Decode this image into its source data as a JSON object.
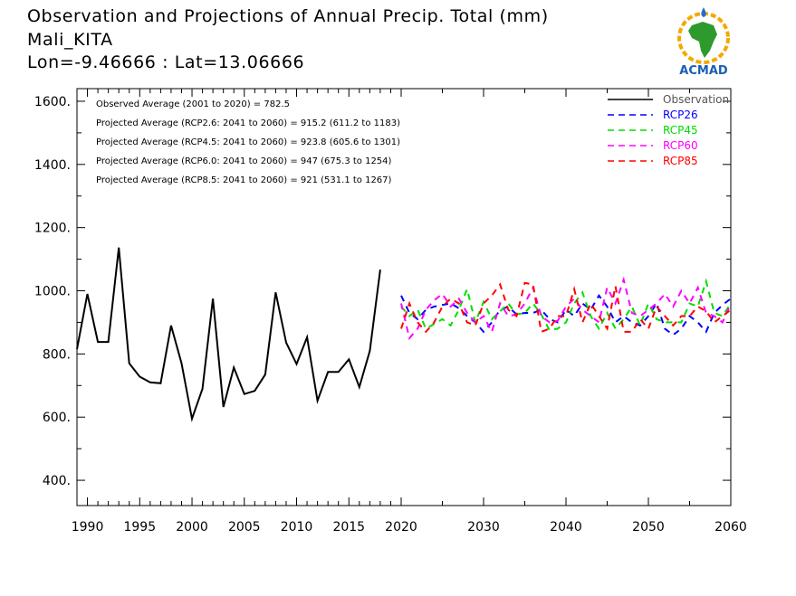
{
  "header": {
    "title": "Observation and Projections of Annual Precip. Total (mm)",
    "location": "Mali_KITA",
    "coords": "Lon=-9.46666 : Lat=13.06666"
  },
  "logo": {
    "text": "ACMAD",
    "icon": "africa-globe-logo"
  },
  "annotations": [
    "Observed Average (2001 to 2020) = 782.5",
    "Projected Average (RCP2.6: 2041 to 2060) = 915.2 (611.2 to 1183)",
    "Projected Average (RCP4.5: 2041 to 2060) = 923.8 (605.6 to 1301)",
    "Projected Average (RCP6.0: 2041 to 2060) = 947 (675.3 to 1254)",
    "Projected Average (RCP8.5: 2041 to 2060) = 921 (531.1 to 1267)"
  ],
  "chart_data": {
    "type": "line",
    "xlim": [
      1989,
      2060
    ],
    "ylim": [
      320,
      1640
    ],
    "x_ticks": [
      1990,
      1995,
      2000,
      2005,
      2010,
      2015,
      2020,
      2030,
      2040,
      2050,
      2060
    ],
    "x_tick_labels": [
      "1990",
      "1995",
      "2000",
      "2005",
      "2010",
      "2015",
      "2020",
      "2030",
      "2040",
      "2050",
      "2060"
    ],
    "y_ticks": [
      400,
      600,
      800,
      1000,
      1200,
      1400,
      1600
    ],
    "y_tick_labels": [
      "400.",
      "600.",
      "800.",
      "1000.",
      "1200.",
      "1400.",
      "1600."
    ],
    "legend_position": "top-right",
    "series": [
      {
        "name": "Observation",
        "color": "#000000",
        "style": "solid",
        "x": [
          1989,
          1990,
          1991,
          1992,
          1993,
          1994,
          1995,
          1996,
          1997,
          1998,
          1999,
          2000,
          2001,
          2002,
          2003,
          2004,
          2005,
          2006,
          2007,
          2008,
          2009,
          2010,
          2011,
          2012,
          2013,
          2014,
          2015,
          2016,
          2017,
          2018,
          2019,
          2020
        ],
        "y": [
          815,
          990,
          838,
          838,
          1137,
          770,
          728,
          710,
          707,
          890,
          770,
          595,
          690,
          975,
          632,
          757,
          673,
          683,
          735,
          995,
          836,
          768,
          853,
          652,
          743,
          743,
          783,
          695,
          810,
          1067,
          null,
          null
        ]
      },
      {
        "name": "RCP26",
        "color": "#0000ff",
        "style": "dashed",
        "x": [
          2020,
          2021,
          2022,
          2023,
          2024,
          2025,
          2026,
          2027,
          2028,
          2029,
          2030,
          2031,
          2032,
          2033,
          2034,
          2035,
          2036,
          2037,
          2038,
          2039,
          2040,
          2041,
          2042,
          2043,
          2044,
          2045,
          2046,
          2047,
          2048,
          2049,
          2050,
          2051,
          2052,
          2053,
          2054,
          2055,
          2056,
          2057,
          2058,
          2059,
          2060
        ],
        "y": [
          985,
          930,
          910,
          940,
          950,
          955,
          960,
          945,
          920,
          900,
          870,
          900,
          940,
          950,
          925,
          930,
          930,
          940,
          910,
          900,
          940,
          920,
          960,
          940,
          985,
          950,
          900,
          920,
          900,
          890,
          920,
          960,
          880,
          860,
          880,
          920,
          900,
          870,
          930,
          955,
          975
        ]
      },
      {
        "name": "RCP45",
        "color": "#00dd00",
        "style": "dashed",
        "x": [
          2020,
          2021,
          2022,
          2023,
          2024,
          2025,
          2026,
          2027,
          2028,
          2029,
          2030,
          2031,
          2032,
          2033,
          2034,
          2035,
          2036,
          2037,
          2038,
          2039,
          2040,
          2041,
          2042,
          2043,
          2044,
          2045,
          2046,
          2047,
          2048,
          2049,
          2050,
          2051,
          2052,
          2053,
          2054,
          2055,
          2056,
          2057,
          2058,
          2059,
          2060
        ],
        "y": [
          950,
          920,
          940,
          880,
          895,
          910,
          890,
          940,
          1005,
          900,
          965,
          910,
          935,
          960,
          925,
          930,
          960,
          925,
          875,
          880,
          900,
          960,
          995,
          920,
          880,
          930,
          880,
          910,
          950,
          890,
          960,
          910,
          900,
          900,
          900,
          960,
          950,
          1030,
          930,
          920,
          960
        ]
      },
      {
        "name": "RCP60",
        "color": "#ff00ff",
        "style": "dashed",
        "x": [
          2020,
          2021,
          2022,
          2023,
          2024,
          2025,
          2026,
          2027,
          2028,
          2029,
          2030,
          2031,
          2032,
          2033,
          2034,
          2035,
          2036,
          2037,
          2038,
          2039,
          2040,
          2041,
          2042,
          2043,
          2044,
          2045,
          2046,
          2047,
          2048,
          2049,
          2050,
          2051,
          2052,
          2053,
          2054,
          2055,
          2056,
          2057,
          2058,
          2059,
          2060
        ],
        "y": [
          960,
          850,
          880,
          940,
          970,
          990,
          950,
          975,
          930,
          900,
          920,
          870,
          960,
          920,
          925,
          960,
          1010,
          920,
          900,
          905,
          950,
          975,
          940,
          920,
          900,
          1010,
          960,
          1035,
          930,
          920,
          940,
          960,
          990,
          950,
          1000,
          960,
          1010,
          930,
          920,
          900,
          960
        ]
      },
      {
        "name": "RCP85",
        "color": "#ff0000",
        "style": "dashed",
        "x": [
          2020,
          2021,
          2022,
          2023,
          2024,
          2025,
          2026,
          2027,
          2028,
          2029,
          2030,
          2031,
          2032,
          2033,
          2034,
          2035,
          2036,
          2037,
          2038,
          2039,
          2040,
          2041,
          2042,
          2043,
          2044,
          2045,
          2046,
          2047,
          2048,
          2049,
          2050,
          2051,
          2052,
          2053,
          2054,
          2055,
          2056,
          2057,
          2058,
          2059,
          2060
        ],
        "y": [
          880,
          960,
          900,
          870,
          900,
          950,
          975,
          960,
          900,
          890,
          960,
          985,
          1020,
          940,
          920,
          1025,
          1020,
          870,
          880,
          920,
          920,
          1005,
          900,
          960,
          920,
          880,
          1015,
          870,
          870,
          910,
          880,
          950,
          920,
          890,
          920,
          920,
          950,
          935,
          900,
          920,
          940
        ]
      }
    ]
  }
}
